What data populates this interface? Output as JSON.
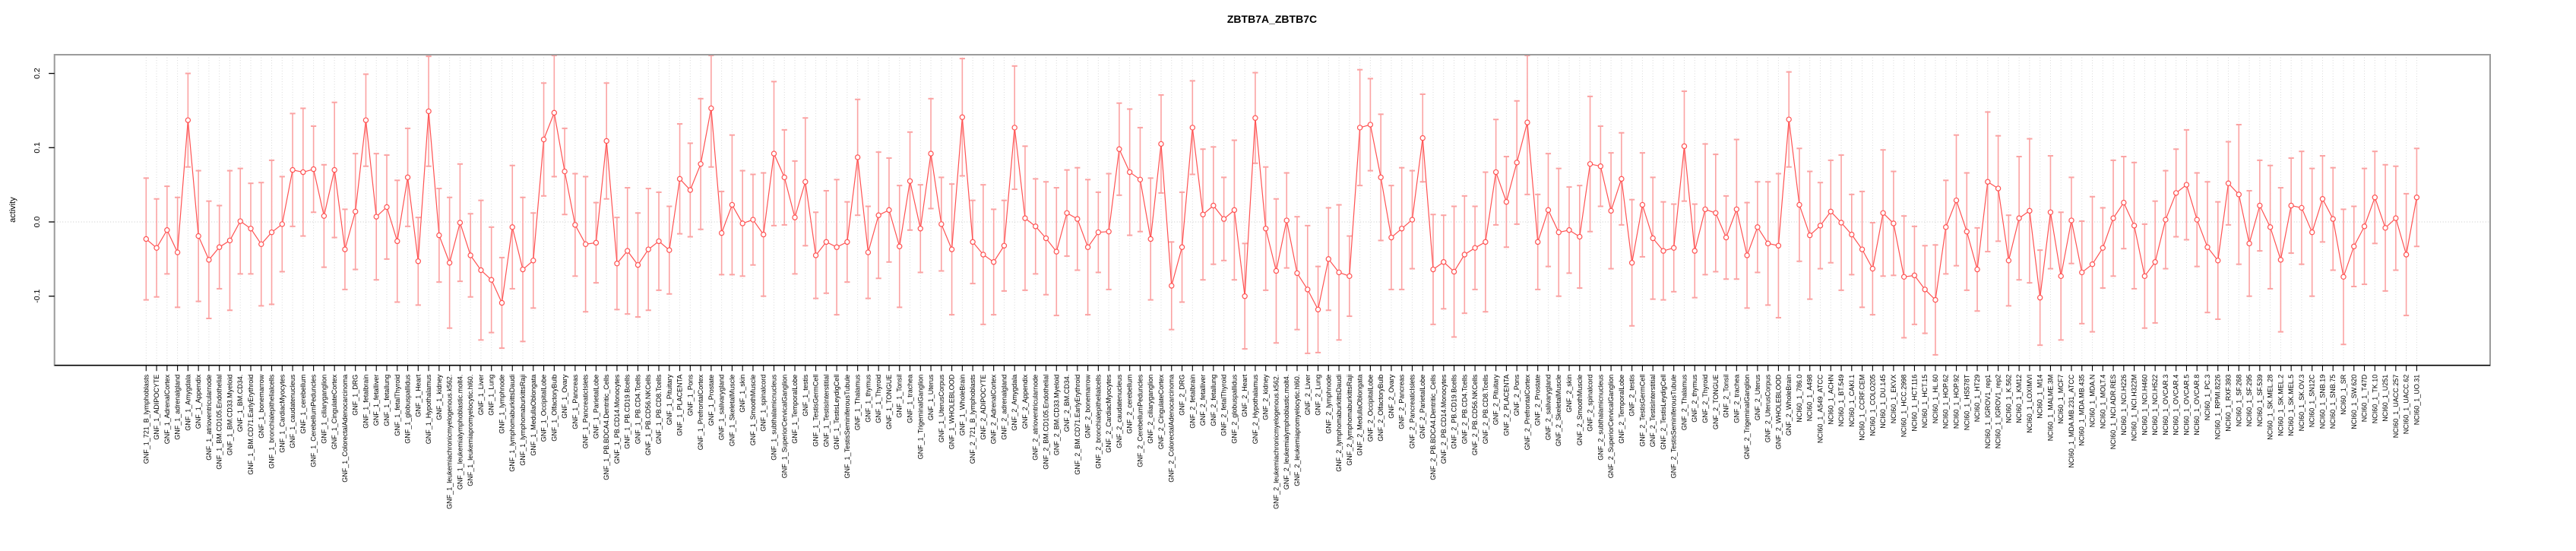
{
  "chart_data": {
    "type": "line",
    "title": "ZBTB7A_ZBTB7C",
    "ylabel": "activity",
    "xlabel": "",
    "legend_position": "none",
    "grid": "dotted vertical line at every category; dotted horizontal line at y=0",
    "marker": "open-circle",
    "point_color": "#ff5252",
    "errorbar_color": "#fba3a3",
    "grid_color": "#d9d9d9",
    "zero_line_color": "#c9c9c9",
    "box_color": "#9b9b9b",
    "axis_color": "#000000",
    "ylim": [
      -0.193,
      0.225
    ],
    "yticks": [
      0.2,
      0.1,
      0.0,
      -0.1
    ],
    "categories": [
      "GNF_1_721_B_lymphoblasts",
      "GNF_1_ADIPOCYTE",
      "GNF_1_AdrenalCortex",
      "GNF_1_adrenalgland",
      "GNF_1_Amygdala",
      "GNF_1_Appendix",
      "GNF_1_atrioventricularnode",
      "GNF_1_BM.CD105.Endothelial",
      "GNF_1_BM.CD33.Myeloid",
      "GNF_1_BM.CD34.",
      "GNF_1_BM.CD71.EarlyErythroid",
      "GNF_1_bonemarrow",
      "GNF_1_bronchialepithelialcells",
      "GNF_1_CardiacMyocytes",
      "GNF_1_caudatenucleus",
      "GNF_1_cerebellum",
      "GNF_1_CerebellumPeduncles",
      "GNF_1_ciliaryganglion",
      "GNF_1_CingulateCortex",
      "GNF_1_ColorectalAdenocarcinoma",
      "GNF_1_DRG",
      "GNF_1_fetalbrain",
      "GNF_1_fetalliver",
      "GNF_1_fetallung",
      "GNF_1_fetalThyroid",
      "GNF_1_globuspallidus",
      "GNF_1_Heart",
      "GNF_1_Hypothalamus",
      "GNF_1_kidney",
      "GNF_1_leukemiachronicmyelogenous.k562.",
      "GNF_1_leukemialymphoblastic.molt4.",
      "GNF_1_leukemiapromyelocytic.hl60.",
      "GNF_1_Liver",
      "GNF_1_Lung",
      "GNF_1_lymphnode",
      "GNF_1_lymphomaburkittsDaudi",
      "GNF_1_lymphomaburkittsRaji",
      "GNF_1_MedullaOblongata",
      "GNF_1_OccipitalLobe",
      "GNF_1_OlfactoryBulb",
      "GNF_1_Ovary",
      "GNF_1_Pancreas",
      "GNF_1_PancreaticIslets",
      "GNF_1_ParietalLobe",
      "GNF_1_PB.BDCA4.Dentritic_Cells",
      "GNF_1_PB.CD14.Monocytes",
      "GNF_1_PB.CD19.Bcells",
      "GNF_1_PB.CD4.Tcells",
      "GNF_1_PB.CD56.NKCells",
      "GNF_1_PB.CD8.Tcells",
      "GNF_1_Pituitary",
      "GNF_1_PLACENTA",
      "GNF_1_Pons",
      "GNF_1_PrefrontalCortex",
      "GNF_1_Prostate",
      "GNF_1_salivarygland",
      "GNF_1_SkeletalMuscle",
      "GNF_1_skin",
      "GNF_1_SmoothMuscle",
      "GNF_1_spinalcord",
      "GNF_1_subthalamicnucleus",
      "GNF_1_SuperiorCervicalGanglion",
      "GNF_1_TemporalLobe",
      "GNF_1_testis",
      "GNF_1_TestisGermCell",
      "GNF_1_TestisInterstitial",
      "GNF_1_TestisLeydigCell",
      "GNF_1_TestisSeminiferousTubule",
      "GNF_1_Thalamus",
      "GNF_1_thymus",
      "GNF_1_Thyroid",
      "GNF_1_TONGUE",
      "GNF_1_Tonsil",
      "GNF_1_trachea",
      "GNF_1_TrigeminalGanglion",
      "GNF_1_Uterus",
      "GNF_1_UterusCorpus",
      "GNF_1_WHOLEBLOOD",
      "GNF_1_WholeBrain",
      "GNF_2_721_B_lymphoblasts",
      "GNF_2_ADIPOCYTE",
      "GNF_2_AdrenalCortex",
      "GNF_2_adrenalgland",
      "GNF_2_Amygdala",
      "GNF_2_Appendix",
      "GNF_2_atrioventricularnode",
      "GNF_2_BM.CD105.Endothelial",
      "GNF_2_BM.CD33.Myeloid",
      "GNF_2_BM.CD34.",
      "GNF_2_BM.CD71.EarlyErythroid",
      "GNF_2_bonemarrow",
      "GNF_2_bronchialepithelialcells",
      "GNF_2_CardiacMyocytes",
      "GNF_2_caudatenucleus",
      "GNF_2_cerebellum",
      "GNF_2_CerebellumPeduncles",
      "GNF_2_ciliaryganglion",
      "GNF_2_CingulateCortex",
      "GNF_2_ColorectalAdenocarcinoma",
      "GNF_2_DRG",
      "GNF_2_fetalbrain",
      "GNF_2_fetalliver",
      "GNF_2_fetallung",
      "GNF_2_fetalThyroid",
      "GNF_2_globuspallidus",
      "GNF_2_Heart",
      "GNF_2_Hypothalamus",
      "GNF_2_kidney",
      "GNF_2_leukemiachronicmyelogenous.k562.",
      "GNF_2_leukemialymphoblastic.molt4.",
      "GNF_2_leukemiapromyelocytic.hl60.",
      "GNF_2_Liver",
      "GNF_2_Lung",
      "GNF_2_lymphnode",
      "GNF_2_lymphomaburkittsDaudi",
      "GNF_2_lymphomaburkittsRaji",
      "GNF_2_MedullaOblongata",
      "GNF_2_OccipitalLobe",
      "GNF_2_OlfactoryBulb",
      "GNF_2_Ovary",
      "GNF_2_Pancreas",
      "GNF_2_PancreaticIslets",
      "GNF_2_ParietalLobe",
      "GNF_2_PB.BDCA4.Dentritic_Cells",
      "GNF_2_PB.CD14.Monocytes",
      "GNF_2_PB.CD19.Bcells",
      "GNF_2_PB.CD4.Tcells",
      "GNF_2_PB.CD56.NKCells",
      "GNF_2_PB.CD8.Tcells",
      "GNF_2_Pituitary",
      "GNF_2_PLACENTA",
      "GNF_2_Pons",
      "GNF_2_PrefrontalCortex",
      "GNF_2_Prostate",
      "GNF_2_salivarygland",
      "GNF_2_SkeletalMuscle",
      "GNF_2_skin",
      "GNF_2_SmoothMuscle",
      "GNF_2_spinalcord",
      "GNF_2_subthalamicnucleus",
      "GNF_2_SuperiorCervicalGanglion",
      "GNF_2_TemporalLobe",
      "GNF_2_testis",
      "GNF_2_TestisGermCell",
      "GNF_2_TestisInterstitial",
      "GNF_2_TestisLeydigCell",
      "GNF_2_TestisSeminiferousTubule",
      "GNF_2_Thalamus",
      "GNF_2_thymus",
      "GNF_2_Thyroid",
      "GNF_2_TONGUE",
      "GNF_2_Tonsil",
      "GNF_2_trachea",
      "GNF_2_TrigeminalGanglion",
      "GNF_2_Uterus",
      "GNF_2_UterusCorpus",
      "GNF_2_WHOLEBLOOD",
      "GNF_2_WholeBrain",
      "NCI60_1_786.0",
      "NCI60_1_A498",
      "NCI60_1_A549_ATCC",
      "NCI60_1_ACHN",
      "NCI60_1_BT.549",
      "NCI60_1_CAKI.1",
      "NCI60_1_CCRF.CEM",
      "NCI60_1_COLO205",
      "NCI60_1_DU.145",
      "NCI60_1_EKVX",
      "NCI60_1_HCC.2998",
      "NCI60_1_HCT.116",
      "NCI60_1_HCT.15",
      "NCI60_1_HL.60",
      "NCI60_1_HOP.62",
      "NCI60_1_HOP.92",
      "NCI60_1_HS578T",
      "NCI60_1_HT29",
      "NCI60_1_IGROV1_rep1",
      "NCI60_1_IGROV1_rep2",
      "NCI60_1_K.562",
      "NCI60_1_KM12",
      "NCI60_1_LOXIMVI",
      "NCI60_1_M14",
      "NCI60_1_MALME.3M",
      "NCI60_1_MCF7",
      "NCI60_1_MDA.MB.231_ATCC",
      "NCI60_1_MDA.MB.435",
      "NCI60_1_MDA.N",
      "NCI60_1_MOLT.4",
      "NCI60_1_NCI.ADR.RES",
      "NCI60_1_NCI.H226",
      "NCI60_1_NCI.H322M",
      "NCI60_1_NCI.H460",
      "NCI60_1_NCI.H522",
      "NCI60_1_OVCAR.3",
      "NCI60_1_OVCAR.4",
      "NCI60_1_OVCAR.5",
      "NCI60_1_OVCAR.8",
      "NCI60_1_PC.3",
      "NCI60_1_RPMI.8226",
      "NCI60_1_RXF.393",
      "NCI60_1_SF.268",
      "NCI60_1_SF.295",
      "NCI60_1_SF.539",
      "NCI60_1_SK.MEL.28",
      "NCI60_1_SK.MEL.2",
      "NCI60_1_SK.MEL.5",
      "NCI60_1_SK.OV.3",
      "NCI60_1_SN12C",
      "NCI60_1_SNB.19",
      "NCI60_1_SNB.75",
      "NCI60_1_SR",
      "NCI60_1_SW.620",
      "NCI60_1_T47D",
      "NCI60_1_TK.10",
      "NCI60_1_U251",
      "NCI60_1_UACC.257",
      "NCI60_1_UACC.62",
      "NCI60_1_UO.31"
    ],
    "values": [
      -0.023,
      -0.035,
      -0.011,
      -0.041,
      0.137,
      -0.019,
      -0.051,
      -0.034,
      -0.025,
      0.001,
      -0.009,
      -0.03,
      -0.014,
      -0.003,
      0.07,
      0.067,
      0.071,
      0.008,
      0.07,
      -0.037,
      0.014,
      0.137,
      0.007,
      0.02,
      -0.026,
      0.06,
      -0.053,
      0.149,
      -0.018,
      -0.055,
      -0.001,
      -0.045,
      -0.065,
      -0.078,
      -0.109,
      -0.007,
      -0.064,
      -0.052,
      0.111,
      0.147,
      0.068,
      -0.004,
      -0.03,
      -0.028,
      0.109,
      -0.056,
      -0.039,
      -0.058,
      -0.037,
      -0.026,
      -0.038,
      0.058,
      0.043,
      0.078,
      0.153,
      -0.015,
      0.023,
      -0.002,
      0.003,
      -0.017,
      0.092,
      0.06,
      0.006,
      0.054,
      -0.045,
      -0.027,
      -0.034,
      -0.027,
      0.087,
      -0.041,
      0.009,
      0.016,
      -0.033,
      0.055,
      -0.009,
      0.092,
      -0.003,
      -0.037,
      0.141,
      -0.027,
      -0.044,
      -0.054,
      -0.032,
      0.127,
      0.005,
      -0.006,
      -0.022,
      -0.04,
      0.012,
      0.004,
      -0.034,
      -0.014,
      -0.013,
      0.098,
      0.067,
      0.057,
      -0.023,
      0.105,
      -0.086,
      -0.034,
      0.127,
      0.01,
      0.022,
      0.004,
      0.016,
      -0.1,
      0.14,
      -0.009,
      -0.066,
      0.002,
      -0.069,
      -0.091,
      -0.118,
      -0.05,
      -0.068,
      -0.073,
      0.127,
      0.131,
      0.06,
      -0.021,
      -0.009,
      0.003,
      0.113,
      -0.064,
      -0.054,
      -0.067,
      -0.044,
      -0.035,
      -0.027,
      0.067,
      0.027,
      0.08,
      0.134,
      -0.027,
      0.016,
      -0.014,
      -0.011,
      -0.02,
      0.078,
      0.075,
      0.015,
      0.058,
      -0.055,
      0.023,
      -0.022,
      -0.039,
      -0.035,
      0.102,
      -0.039,
      0.017,
      0.012,
      -0.021,
      0.017,
      -0.045,
      -0.007,
      -0.029,
      -0.032,
      0.138,
      0.023,
      -0.018,
      -0.005,
      0.014,
      -0.001,
      -0.017,
      -0.037,
      -0.063,
      0.012,
      -0.002,
      -0.074,
      -0.072,
      -0.091,
      -0.105,
      -0.007,
      0.029,
      -0.013,
      -0.064,
      0.054,
      0.045,
      -0.052,
      0.005,
      0.015,
      -0.102,
      0.013,
      -0.073,
      0.002,
      -0.068,
      -0.057,
      -0.035,
      0.005,
      0.026,
      -0.005,
      -0.073,
      -0.054,
      0.003,
      0.039,
      0.05,
      0.003,
      -0.034,
      -0.052,
      0.052,
      0.037,
      -0.029,
      0.022,
      -0.007,
      -0.051,
      0.022,
      0.019,
      -0.014,
      0.031,
      0.004,
      -0.074,
      -0.033,
      -0.006,
      0.033,
      -0.008,
      0.005,
      -0.044,
      0.033
    ],
    "errors": [
      0.082,
      0.066,
      0.059,
      0.074,
      0.063,
      0.088,
      0.079,
      0.056,
      0.094,
      0.071,
      0.061,
      0.083,
      0.097,
      0.064,
      0.076,
      0.086,
      0.058,
      0.069,
      0.091,
      0.054,
      0.078,
      0.062,
      0.085,
      0.07,
      0.082,
      0.066,
      0.059,
      0.074,
      0.063,
      0.088,
      0.079,
      0.056,
      0.094,
      0.071,
      0.061,
      0.083,
      0.097,
      0.064,
      0.076,
      0.086,
      0.058,
      0.069,
      0.091,
      0.054,
      0.078,
      0.062,
      0.085,
      0.07,
      0.082,
      0.066,
      0.059,
      0.074,
      0.063,
      0.088,
      0.079,
      0.056,
      0.094,
      0.071,
      0.061,
      0.083,
      0.097,
      0.064,
      0.076,
      0.086,
      0.058,
      0.069,
      0.091,
      0.054,
      0.078,
      0.062,
      0.085,
      0.07,
      0.082,
      0.066,
      0.059,
      0.074,
      0.063,
      0.088,
      0.079,
      0.056,
      0.094,
      0.071,
      0.061,
      0.083,
      0.097,
      0.064,
      0.076,
      0.086,
      0.058,
      0.069,
      0.091,
      0.054,
      0.078,
      0.062,
      0.085,
      0.07,
      0.082,
      0.066,
      0.059,
      0.074,
      0.063,
      0.088,
      0.079,
      0.056,
      0.094,
      0.071,
      0.061,
      0.083,
      0.097,
      0.064,
      0.076,
      0.086,
      0.058,
      0.069,
      0.091,
      0.054,
      0.078,
      0.062,
      0.085,
      0.07,
      0.082,
      0.066,
      0.059,
      0.074,
      0.063,
      0.088,
      0.079,
      0.056,
      0.094,
      0.071,
      0.061,
      0.083,
      0.097,
      0.064,
      0.076,
      0.086,
      0.058,
      0.069,
      0.091,
      0.054,
      0.078,
      0.062,
      0.085,
      0.07,
      0.082,
      0.066,
      0.059,
      0.074,
      0.063,
      0.088,
      0.079,
      0.056,
      0.094,
      0.071,
      0.061,
      0.083,
      0.097,
      0.064,
      0.076,
      0.086,
      0.058,
      0.069,
      0.091,
      0.054,
      0.078,
      0.062,
      0.085,
      0.07,
      0.082,
      0.066,
      0.059,
      0.074,
      0.063,
      0.088,
      0.079,
      0.056,
      0.094,
      0.071,
      0.061,
      0.083,
      0.097,
      0.064,
      0.076,
      0.086,
      0.058,
      0.069,
      0.091,
      0.054,
      0.078,
      0.062,
      0.085,
      0.07,
      0.082,
      0.066,
      0.059,
      0.074,
      0.063,
      0.088,
      0.079,
      0.056,
      0.094,
      0.071,
      0.061,
      0.083,
      0.097,
      0.064,
      0.076,
      0.086,
      0.058,
      0.069,
      0.091,
      0.054,
      0.078,
      0.062,
      0.085,
      0.07,
      0.082,
      0.066
    ]
  }
}
